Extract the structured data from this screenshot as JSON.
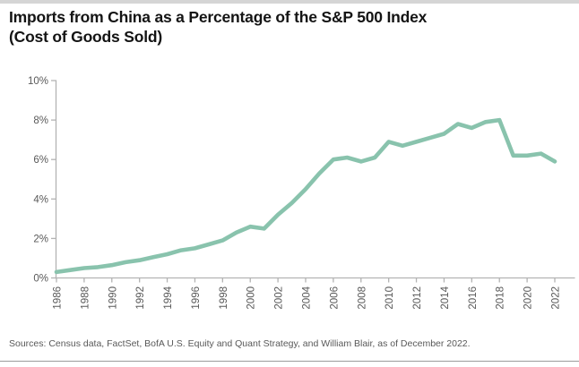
{
  "page": {
    "title_lines": [
      "Imports from China as a Percentage of the S&P 500 Index",
      "(Cost of Goods Sold)"
    ],
    "source_note": "Sources: Census data, FactSet, BofA U.S. Equity and Quant Strategy, and William Blair, as of December 2022."
  },
  "colors": {
    "line": "#89c3ad",
    "axis": "#b3b3b3",
    "tick_label": "#595959",
    "title": "#141414",
    "source_text": "#595959",
    "top_bar": "#d5d5d5",
    "bottom_rule": "#9b9b9b"
  },
  "chart_data": {
    "type": "line",
    "title": "Imports from China as a Percentage of the S&P 500 Index (Cost of Goods Sold)",
    "xlabel": "",
    "ylabel": "",
    "x": [
      1986,
      1987,
      1988,
      1989,
      1990,
      1991,
      1992,
      1993,
      1994,
      1995,
      1996,
      1997,
      1998,
      1999,
      2000,
      2001,
      2002,
      2003,
      2004,
      2005,
      2006,
      2007,
      2008,
      2009,
      2010,
      2011,
      2012,
      2013,
      2014,
      2015,
      2016,
      2017,
      2018,
      2019,
      2020,
      2021,
      2022
    ],
    "series": [
      {
        "name": "Imports from China as % of S&P 500 cost of goods sold",
        "values": [
          0.3,
          0.4,
          0.5,
          0.55,
          0.65,
          0.8,
          0.9,
          1.05,
          1.2,
          1.4,
          1.5,
          1.7,
          1.9,
          2.3,
          2.6,
          2.5,
          3.2,
          3.8,
          4.5,
          5.3,
          6.0,
          6.1,
          5.9,
          6.1,
          6.9,
          6.7,
          6.9,
          7.1,
          7.3,
          7.8,
          7.6,
          7.9,
          8.0,
          6.2,
          6.2,
          6.3,
          5.9
        ]
      }
    ],
    "ylim": [
      0,
      10
    ],
    "yticks": [
      0,
      2,
      4,
      6,
      8,
      10
    ],
    "ytick_labels": [
      "0%",
      "2%",
      "4%",
      "6%",
      "8%",
      "10%"
    ],
    "xtick_start": 1986,
    "xtick_end": 2022,
    "xtick_step": 2,
    "grid": false,
    "legend": false
  }
}
